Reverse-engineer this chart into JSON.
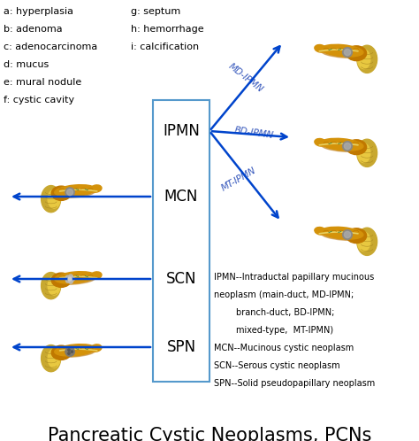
{
  "title": "Pancreatic Cystic Neoplasms, PCNs",
  "title_fontsize": 15,
  "background_color": "#ffffff",
  "legend_left_col1": [
    "a: hyperplasia",
    "b: adenoma",
    "c: adenocarcinoma",
    "d: mucus",
    "e: mural nodule",
    "f: cystic cavity"
  ],
  "legend_left_col2": [
    "g: septum",
    "h: hemorrhage",
    "i: calcification"
  ],
  "box_labels": [
    "IPMN",
    "MCN",
    "SCN",
    "SPN"
  ],
  "box_color": "#5599cc",
  "arrow_color": "#0044cc",
  "ipmn_branches": [
    "MD-IPMN",
    "BD-IPMN",
    "MT-IPMN"
  ],
  "description_lines": [
    "IPMN--Intraductal papillary mucinous",
    "neoplasm (main-duct, MD-IPMN;",
    "        branch-duct, BD-IPMN;",
    "        mixed-type,  MT-IPMN)",
    "MCN--Mucinous cystic neoplasm",
    "SCN--Serous cystic neoplasm",
    "SPN--Solid pseudopapillary neoplasm"
  ],
  "text_color": "#000000",
  "blue_label_color": "#3355bb",
  "pancreas_body_color": "#D4920A",
  "pancreas_head_color": "#C07800",
  "pancreas_duct_color": "#E8B840",
  "pancreas_duo_color": "#C8A000",
  "cyst_color": "#909090",
  "green_duct": "#448844"
}
